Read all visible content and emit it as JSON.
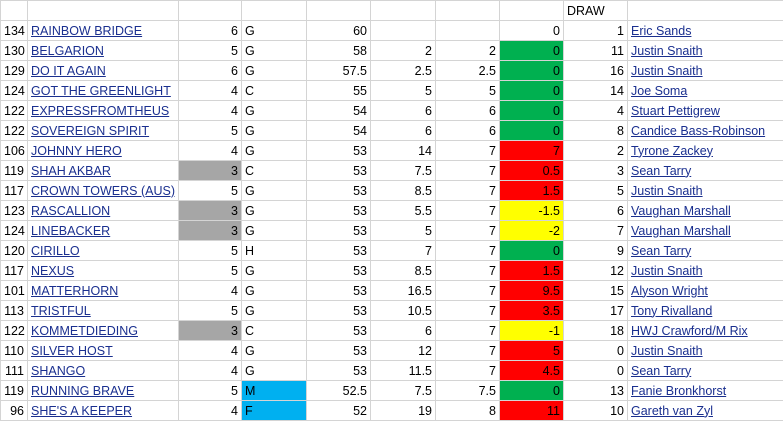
{
  "header": {
    "draw": "DRAW"
  },
  "table": {
    "rows": [
      {
        "cells": [
          134,
          "RAINBOW BRIDGE",
          6,
          "G",
          60,
          null,
          null,
          0,
          1,
          "Eric Sands"
        ]
      },
      {
        "cells": [
          130,
          "BELGARION",
          5,
          "G",
          58,
          2,
          2,
          0,
          11,
          "Justin Snaith"
        ],
        "fills": {
          "7": "#00b050"
        }
      },
      {
        "cells": [
          129,
          "DO IT AGAIN",
          6,
          "G",
          57.5,
          2.5,
          2.5,
          0,
          16,
          "Justin Snaith"
        ],
        "fills": {
          "7": "#00b050"
        }
      },
      {
        "cells": [
          124,
          "GOT THE GREENLIGHT",
          4,
          "C",
          55,
          5,
          5,
          0,
          14,
          "Joe Soma"
        ],
        "fills": {
          "7": "#00b050"
        }
      },
      {
        "cells": [
          122,
          "EXPRESSFROMTHEUS",
          4,
          "G",
          54,
          6,
          6,
          0,
          4,
          "Stuart Pettigrew"
        ],
        "fills": {
          "7": "#00b050"
        }
      },
      {
        "cells": [
          122,
          "SOVEREIGN SPIRIT",
          5,
          "G",
          54,
          6,
          6,
          0,
          8,
          "Candice Bass-Robinson"
        ],
        "fills": {
          "7": "#00b050"
        }
      },
      {
        "cells": [
          106,
          "JOHNNY HERO",
          4,
          "G",
          53,
          14,
          7,
          7,
          2,
          "Tyrone Zackey"
        ],
        "fills": {
          "7": "#ff0000"
        }
      },
      {
        "cells": [
          119,
          "SHAH AKBAR",
          3,
          "C",
          53,
          7.5,
          7,
          0.5,
          3,
          "Sean Tarry"
        ],
        "fills": {
          "2": "#a6a6a6",
          "7": "#ff0000"
        }
      },
      {
        "cells": [
          117,
          "CROWN TOWERS (AUS)",
          5,
          "G",
          53,
          8.5,
          7,
          1.5,
          5,
          "Justin Snaith"
        ],
        "fills": {
          "7": "#ff0000"
        }
      },
      {
        "cells": [
          123,
          "RASCALLION",
          3,
          "G",
          53,
          5.5,
          7,
          -1.5,
          6,
          "Vaughan Marshall"
        ],
        "fills": {
          "2": "#a6a6a6",
          "7": "#ffff00"
        }
      },
      {
        "cells": [
          124,
          "LINEBACKER",
          3,
          "G",
          53,
          5,
          7,
          -2,
          7,
          "Vaughan Marshall"
        ],
        "fills": {
          "2": "#a6a6a6",
          "7": "#ffff00"
        }
      },
      {
        "cells": [
          120,
          "CIRILLO",
          5,
          "H",
          53,
          7,
          7,
          0,
          9,
          "Sean Tarry"
        ],
        "fills": {
          "7": "#00b050"
        }
      },
      {
        "cells": [
          117,
          "NEXUS",
          5,
          "G",
          53,
          8.5,
          7,
          1.5,
          12,
          "Justin Snaith"
        ],
        "fills": {
          "7": "#ff0000"
        }
      },
      {
        "cells": [
          101,
          "MATTERHORN",
          4,
          "G",
          53,
          16.5,
          7,
          9.5,
          15,
          "Alyson Wright"
        ],
        "fills": {
          "7": "#ff0000"
        }
      },
      {
        "cells": [
          113,
          "TRISTFUL",
          5,
          "G",
          53,
          10.5,
          7,
          3.5,
          17,
          "Tony Rivalland"
        ],
        "fills": {
          "7": "#ff0000"
        }
      },
      {
        "cells": [
          122,
          "KOMMETDIEDING",
          3,
          "C",
          53,
          6,
          7,
          -1,
          18,
          "HWJ Crawford/M Rix"
        ],
        "fills": {
          "2": "#a6a6a6",
          "7": "#ffff00"
        }
      },
      {
        "cells": [
          110,
          "SILVER HOST",
          4,
          "G",
          53,
          12,
          7,
          5,
          0,
          "Justin Snaith"
        ],
        "fills": {
          "7": "#ff0000"
        }
      },
      {
        "cells": [
          111,
          "SHANGO",
          4,
          "G",
          53,
          11.5,
          7,
          4.5,
          0,
          "Sean Tarry"
        ],
        "fills": {
          "7": "#ff0000"
        }
      },
      {
        "cells": [
          119,
          "RUNNING BRAVE",
          5,
          "M",
          52.5,
          7.5,
          7.5,
          0,
          13,
          "Fanie Bronkhorst"
        ],
        "fills": {
          "3": "#00b0f0",
          "7": "#00b050"
        }
      },
      {
        "cells": [
          96,
          "SHE'S A KEEPER",
          4,
          "F",
          52,
          19,
          8,
          11,
          10,
          "Gareth van Zyl"
        ],
        "fills": {
          "3": "#00b0f0",
          "7": "#ff0000"
        }
      }
    ]
  }
}
